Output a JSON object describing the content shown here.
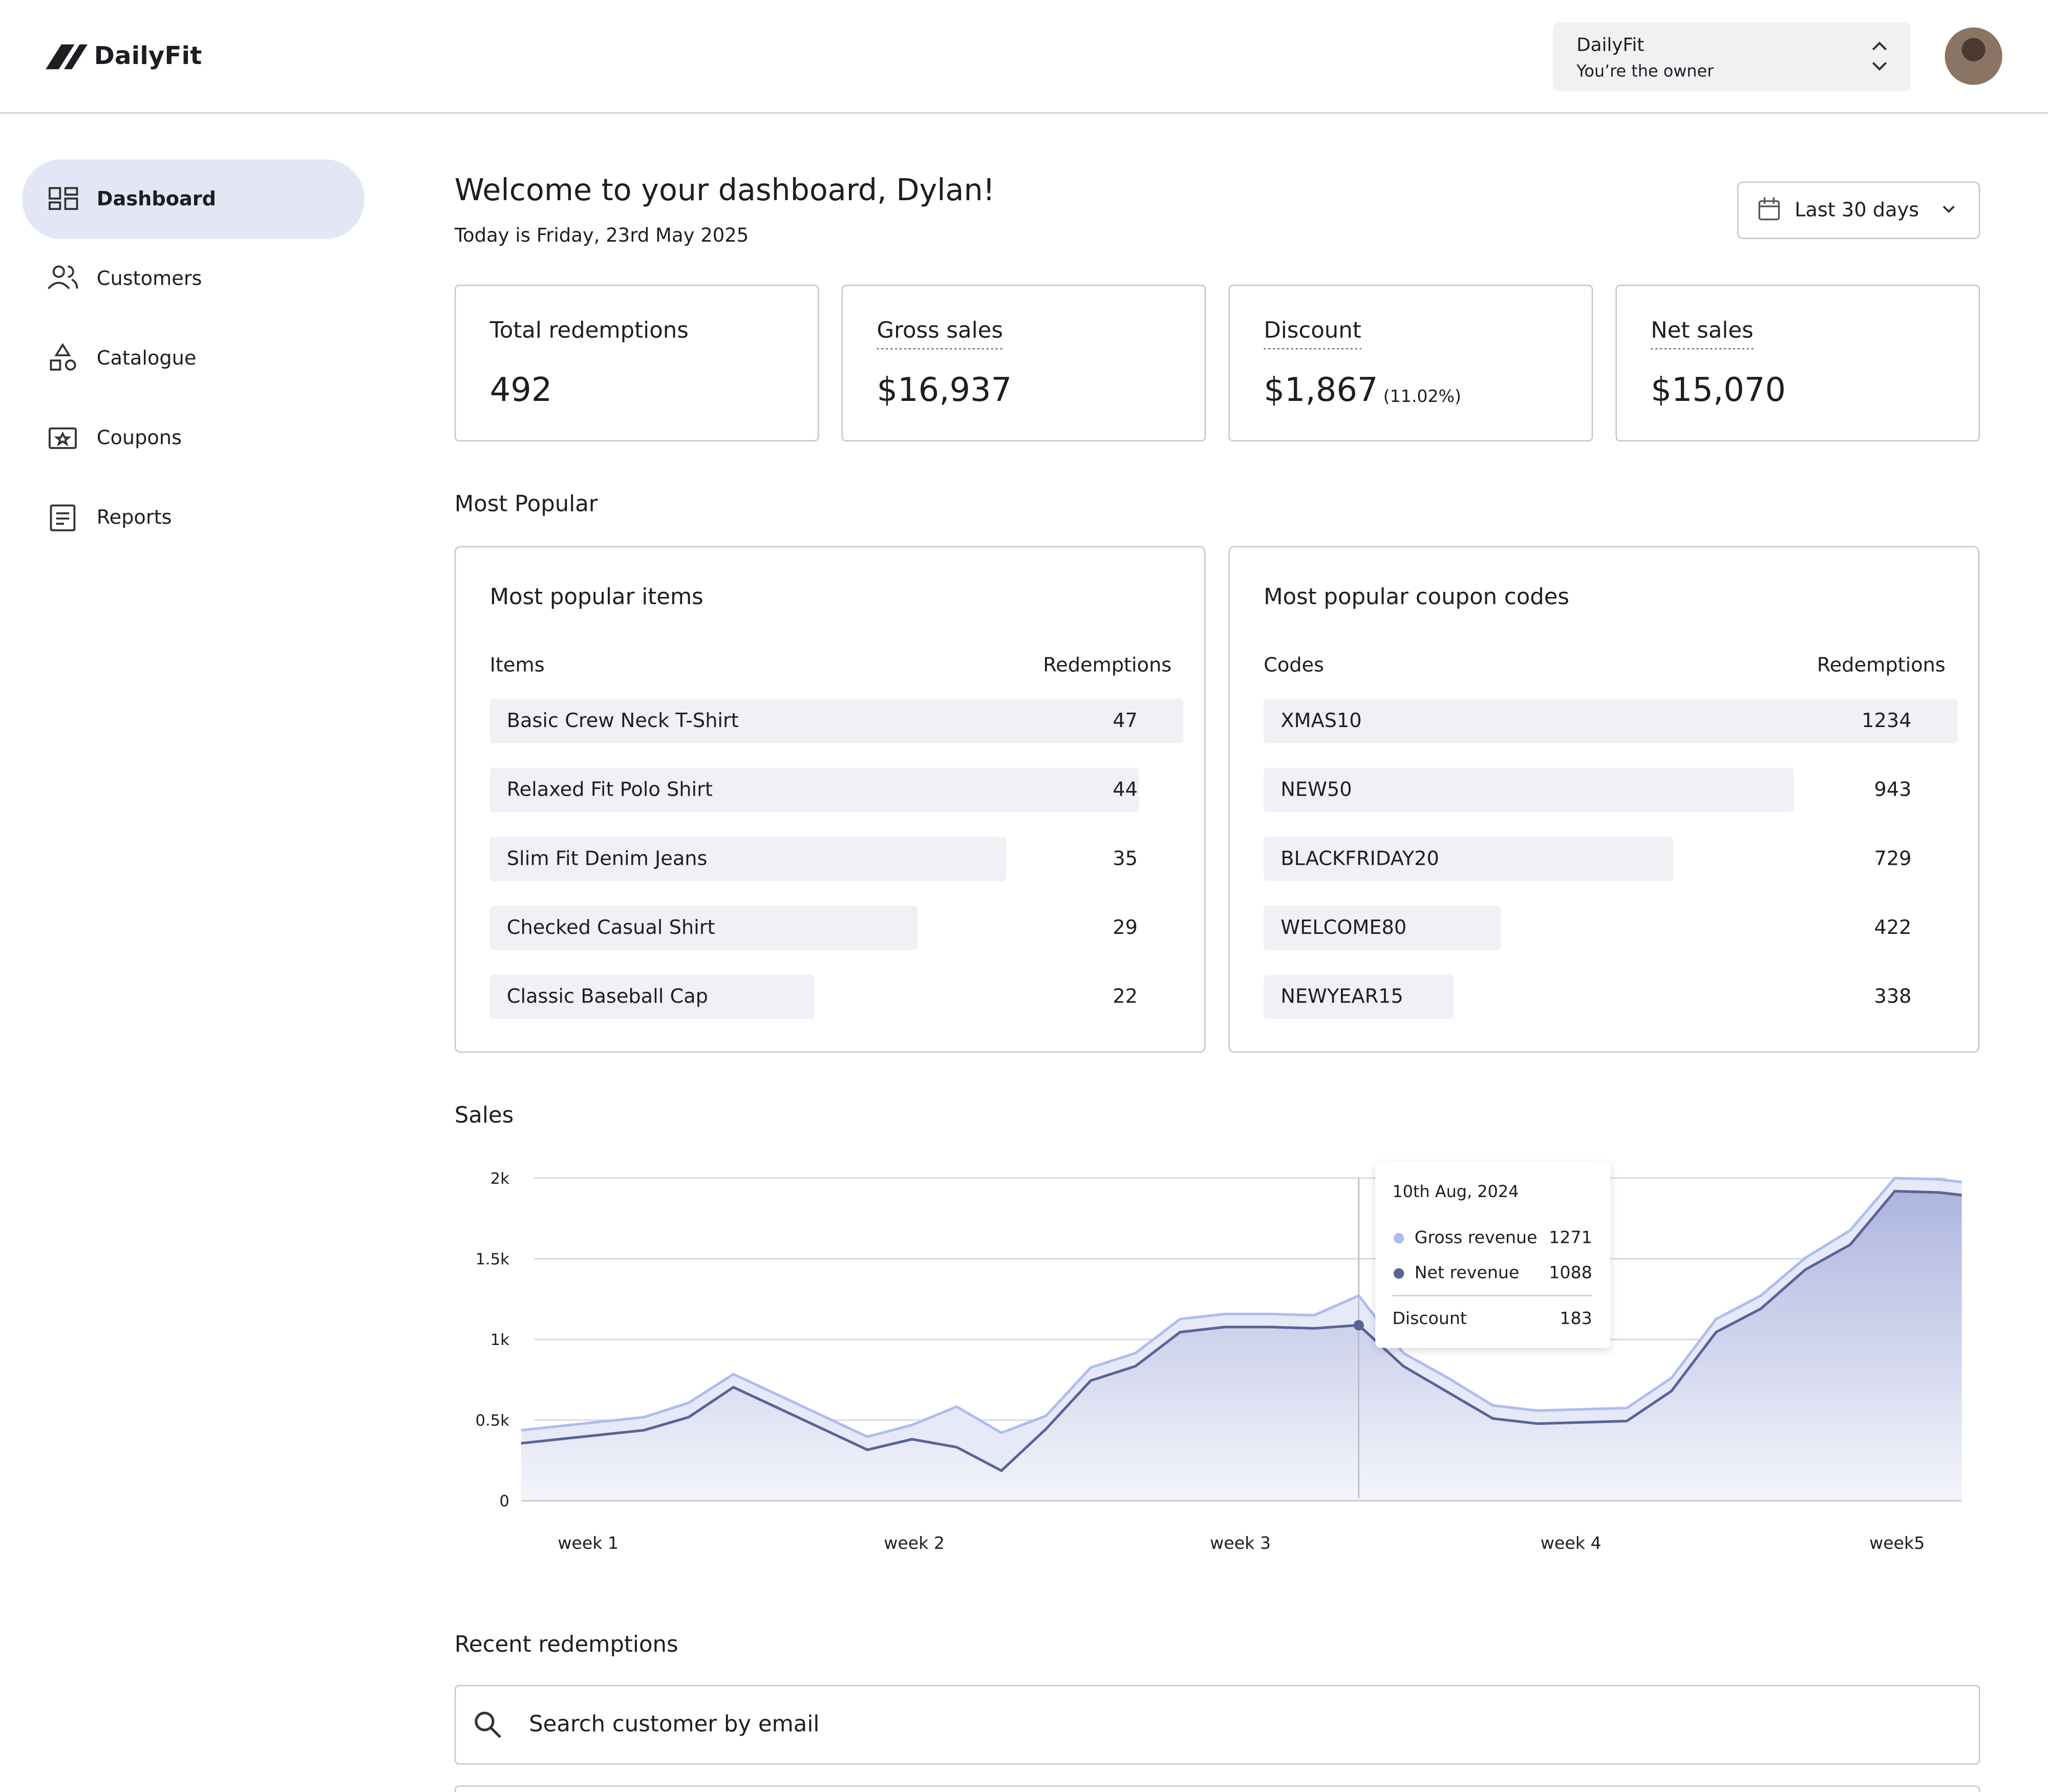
{
  "header": {
    "brand": "DailyFit",
    "account": {
      "name": "DailyFit",
      "role": "You’re the owner"
    }
  },
  "nav": [
    "Dashboard",
    "Customers",
    "Catalogue",
    "Coupons",
    "Reports"
  ],
  "welcome": {
    "title": "Welcome to your dashboard, Dylan!",
    "date": "Today is Friday, 23rd May 2025"
  },
  "range": "Last 30 days",
  "stats": [
    {
      "label": "Total redemptions",
      "value": "492"
    },
    {
      "label": "Gross sales",
      "value": "$16,937"
    },
    {
      "label": "Discount",
      "value": "$1,867",
      "note": "(11.02%)"
    },
    {
      "label": "Net sales",
      "value": "$15,070"
    }
  ],
  "popular": {
    "heading": "Most Popular",
    "items": {
      "title": "Most  popular items",
      "columns": [
        "Items",
        "Redemptions"
      ],
      "rows": [
        {
          "name": "Basic Crew Neck T-Shirt",
          "value": 47
        },
        {
          "name": "Relaxed Fit Polo Shirt",
          "value": 44
        },
        {
          "name": "Slim Fit Denim Jeans",
          "value": 35
        },
        {
          "name": "Checked Casual Shirt",
          "value": 29
        },
        {
          "name": "Classic Baseball Cap",
          "value": 22
        }
      ]
    },
    "codes": {
      "title": "Most  popular coupon codes",
      "columns": [
        "Codes",
        "Redemptions"
      ],
      "rows": [
        {
          "name": "XMAS10",
          "value": 1234
        },
        {
          "name": "NEW50",
          "value": 943
        },
        {
          "name": "BLACKFRIDAY20",
          "value": 729
        },
        {
          "name": "WELCOME80",
          "value": 422
        },
        {
          "name": "NEWYEAR15",
          "value": 338
        }
      ]
    }
  },
  "chart_data": {
    "type": "line",
    "title": "Sales",
    "x": [
      0,
      2.75,
      3.75,
      4.75,
      5.75,
      6.75,
      7.75,
      8.75,
      9.75,
      10.75,
      11.75,
      12.75,
      13.75,
      14.75,
      15.75,
      16.75,
      17.75,
      18.75,
      19.75,
      20.75,
      21.75,
      22.75,
      23.75,
      24.75,
      25.75,
      26.75,
      27.75,
      28.75,
      29.75,
      30.75,
      31.75,
      32.25
    ],
    "series": [
      {
        "name": "Gross revenue",
        "color": "#aebcf0",
        "values": [
          437,
          518,
          607,
          785,
          656,
          526,
          397,
          470,
          583,
          421,
          526,
          826,
          915,
          1126,
          1158,
          1158,
          1150,
          1271,
          915,
          761,
          591,
          559,
          567,
          575,
          761,
          1126,
          1271,
          1506,
          1676,
          2000,
          1992,
          1976
        ]
      },
      {
        "name": "Net revenue",
        "color": "#5a6396",
        "values": [
          356,
          437,
          518,
          704,
          575,
          445,
          316,
          381,
          332,
          186,
          445,
          745,
          834,
          1045,
          1077,
          1077,
          1069,
          1088,
          834,
          672,
          510,
          478,
          486,
          494,
          680,
          1045,
          1190,
          1433,
          1587,
          1919,
          1911,
          1895
        ]
      }
    ],
    "xlim": [
      0,
      32.25
    ],
    "xticks": [
      {
        "value": 1.5,
        "label": "week 1"
      },
      {
        "value": 8.8,
        "label": "week 2"
      },
      {
        "value": 16.1,
        "label": "week 3"
      },
      {
        "value": 23.5,
        "label": "week 4"
      },
      {
        "value": 30.8,
        "label": "week5"
      }
    ],
    "ylim": [
      0,
      2000
    ],
    "yticks": [
      0,
      {
        "value": 500,
        "label": "0.5k"
      },
      {
        "value": 1000,
        "label": "1k"
      },
      {
        "value": 1500,
        "label": "1.5k"
      },
      {
        "value": 2000,
        "label": "2k"
      }
    ],
    "grid": true,
    "tooltip": {
      "date": "10th Aug, 2024",
      "values": [
        1271,
        1088
      ],
      "discount_label": "Discount",
      "discount": 183
    }
  },
  "recent": {
    "title": "Recent redemptions",
    "search": "Search customer by email"
  }
}
